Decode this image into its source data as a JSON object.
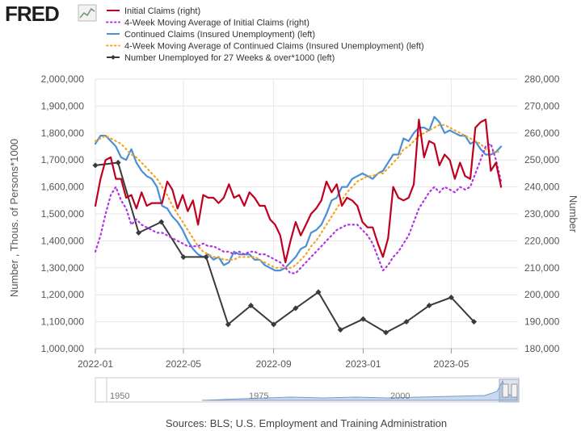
{
  "logo": {
    "text": "FRED"
  },
  "colors": {
    "initial_claims": "#c00020",
    "ma4_initial": "#b033e6",
    "continued": "#4a90d9",
    "ma4_continued": "#f5a623",
    "unemployed27": "#3a3a3a",
    "grid": "#e6e6e6"
  },
  "source_text": "Sources: BLS; U.S. Employment and Training Administration",
  "navigator": {
    "labels": [
      "1950",
      "1975",
      "2000"
    ]
  },
  "chart_data": {
    "type": "line",
    "x_type": "date",
    "xlim": [
      "2022-01-01",
      "2023-07-31"
    ],
    "x_ticks": [
      "2022-01",
      "2022-05",
      "2022-09",
      "2023-01",
      "2023-05"
    ],
    "ylabel_left": "Number , Thous. of Persons*1000",
    "ylabel_right": "Number",
    "ylim_left": [
      1000000,
      2000000
    ],
    "ylim_right": [
      180000,
      280000
    ],
    "y_ticks_left": [
      "1,000,000",
      "1,100,000",
      "1,200,000",
      "1,300,000",
      "1,400,000",
      "1,500,000",
      "1,600,000",
      "1,700,000",
      "1,800,000",
      "1,900,000",
      "2,000,000"
    ],
    "y_ticks_right": [
      "180,000",
      "190,000",
      "200,000",
      "210,000",
      "220,000",
      "230,000",
      "240,000",
      "250,000",
      "260,000",
      "270,000",
      "280,000"
    ],
    "grid": true,
    "legend_position": "top",
    "series": [
      {
        "name": "Initial Claims (right)",
        "axis": "right",
        "style": "solid",
        "x": [
          "2022-01-01",
          "2022-01-08",
          "2022-01-15",
          "2022-01-22",
          "2022-01-29",
          "2022-02-05",
          "2022-02-12",
          "2022-02-19",
          "2022-02-26",
          "2022-03-05",
          "2022-03-12",
          "2022-03-19",
          "2022-03-26",
          "2022-04-02",
          "2022-04-09",
          "2022-04-16",
          "2022-04-23",
          "2022-04-30",
          "2022-05-07",
          "2022-05-14",
          "2022-05-21",
          "2022-05-28",
          "2022-06-04",
          "2022-06-11",
          "2022-06-18",
          "2022-06-25",
          "2022-07-02",
          "2022-07-09",
          "2022-07-16",
          "2022-07-23",
          "2022-07-30",
          "2022-08-06",
          "2022-08-13",
          "2022-08-20",
          "2022-08-27",
          "2022-09-03",
          "2022-09-10",
          "2022-09-17",
          "2022-09-24",
          "2022-10-01",
          "2022-10-08",
          "2022-10-15",
          "2022-10-22",
          "2022-10-29",
          "2022-11-05",
          "2022-11-12",
          "2022-11-19",
          "2022-11-26",
          "2022-12-03",
          "2022-12-10",
          "2022-12-17",
          "2022-12-24",
          "2022-12-31",
          "2023-01-07",
          "2023-01-14",
          "2023-01-21",
          "2023-01-28",
          "2023-02-04",
          "2023-02-11",
          "2023-02-18",
          "2023-02-25",
          "2023-03-04",
          "2023-03-11",
          "2023-03-18",
          "2023-03-25",
          "2023-04-01",
          "2023-04-08",
          "2023-04-15",
          "2023-04-22",
          "2023-04-29",
          "2023-05-06",
          "2023-05-13",
          "2023-05-20",
          "2023-05-27",
          "2023-06-03",
          "2023-06-10",
          "2023-06-17",
          "2023-06-24",
          "2023-07-01",
          "2023-07-08"
        ],
        "values": [
          233000,
          243000,
          250000,
          251000,
          243000,
          243000,
          236000,
          237000,
          232000,
          238000,
          233000,
          234000,
          234000,
          234000,
          242000,
          239000,
          232000,
          237000,
          231000,
          235000,
          226000,
          237000,
          236000,
          236000,
          234000,
          236000,
          241000,
          236000,
          237000,
          233000,
          238000,
          236000,
          233000,
          233000,
          228000,
          226000,
          222000,
          212000,
          220000,
          227000,
          222000,
          226000,
          230000,
          232000,
          235000,
          242000,
          238000,
          241000,
          233000,
          236000,
          235000,
          233000,
          227000,
          225000,
          225000,
          219000,
          214000,
          221000,
          240000,
          236000,
          235000,
          236000,
          241000,
          265000,
          251000,
          257000,
          256000,
          248000,
          252000,
          250000,
          243000,
          249000,
          244000,
          243000,
          262000,
          264000,
          265000,
          246000,
          249000,
          240000
        ]
      },
      {
        "name": "4-Week Moving Average of Initial Claims (right)",
        "axis": "right",
        "style": "dotted",
        "x": [
          "2022-01-01",
          "2022-01-08",
          "2022-01-15",
          "2022-01-22",
          "2022-01-29",
          "2022-02-05",
          "2022-02-12",
          "2022-02-19",
          "2022-02-26",
          "2022-03-05",
          "2022-03-12",
          "2022-03-19",
          "2022-03-26",
          "2022-04-02",
          "2022-04-09",
          "2022-04-16",
          "2022-04-23",
          "2022-04-30",
          "2022-05-07",
          "2022-05-14",
          "2022-05-21",
          "2022-05-28",
          "2022-06-04",
          "2022-06-11",
          "2022-06-18",
          "2022-06-25",
          "2022-07-02",
          "2022-07-09",
          "2022-07-16",
          "2022-07-23",
          "2022-07-30",
          "2022-08-06",
          "2022-08-13",
          "2022-08-20",
          "2022-08-27",
          "2022-09-03",
          "2022-09-10",
          "2022-09-17",
          "2022-09-24",
          "2022-10-01",
          "2022-10-08",
          "2022-10-15",
          "2022-10-22",
          "2022-10-29",
          "2022-11-05",
          "2022-11-12",
          "2022-11-19",
          "2022-11-26",
          "2022-12-03",
          "2022-12-10",
          "2022-12-17",
          "2022-12-24",
          "2022-12-31",
          "2023-01-07",
          "2023-01-14",
          "2023-01-21",
          "2023-01-28",
          "2023-02-04",
          "2023-02-11",
          "2023-02-18",
          "2023-02-25",
          "2023-03-04",
          "2023-03-11",
          "2023-03-18",
          "2023-03-25",
          "2023-04-01",
          "2023-04-08",
          "2023-04-15",
          "2023-04-22",
          "2023-04-29",
          "2023-05-06",
          "2023-05-13",
          "2023-05-20",
          "2023-05-27",
          "2023-06-03",
          "2023-06-10",
          "2023-06-17",
          "2023-06-24",
          "2023-07-01",
          "2023-07-08"
        ],
        "values": [
          216000,
          222000,
          230000,
          237000,
          240000,
          235000,
          232000,
          226000,
          228000,
          226000,
          225000,
          224000,
          223000,
          223000,
          222000,
          221000,
          220000,
          219000,
          218000,
          218000,
          218000,
          219000,
          218000,
          218000,
          217000,
          216000,
          216000,
          215000,
          216000,
          215000,
          216000,
          216000,
          215000,
          215000,
          214000,
          213000,
          212000,
          210000,
          208000,
          208000,
          210000,
          212000,
          214000,
          216000,
          218000,
          220000,
          222000,
          224000,
          225000,
          226000,
          226000,
          226000,
          224000,
          222000,
          219000,
          214000,
          209000,
          211000,
          214000,
          216000,
          219000,
          222000,
          227000,
          232000,
          235000,
          238000,
          240000,
          238000,
          240000,
          239000,
          238000,
          240000,
          239000,
          240000,
          245000,
          250000,
          255000,
          256000,
          250000,
          242000
        ]
      },
      {
        "name": "Continued Claims (Insured Unemployment) (left)",
        "axis": "left",
        "style": "solid",
        "x": [
          "2022-01-01",
          "2022-01-08",
          "2022-01-15",
          "2022-01-22",
          "2022-01-29",
          "2022-02-05",
          "2022-02-12",
          "2022-02-19",
          "2022-02-26",
          "2022-03-05",
          "2022-03-12",
          "2022-03-19",
          "2022-03-26",
          "2022-04-02",
          "2022-04-09",
          "2022-04-16",
          "2022-04-23",
          "2022-04-30",
          "2022-05-07",
          "2022-05-14",
          "2022-05-21",
          "2022-05-28",
          "2022-06-04",
          "2022-06-11",
          "2022-06-18",
          "2022-06-25",
          "2022-07-02",
          "2022-07-09",
          "2022-07-16",
          "2022-07-23",
          "2022-07-30",
          "2022-08-06",
          "2022-08-13",
          "2022-08-20",
          "2022-08-27",
          "2022-09-03",
          "2022-09-10",
          "2022-09-17",
          "2022-09-24",
          "2022-10-01",
          "2022-10-08",
          "2022-10-15",
          "2022-10-22",
          "2022-10-29",
          "2022-11-05",
          "2022-11-12",
          "2022-11-19",
          "2022-11-26",
          "2022-12-03",
          "2022-12-10",
          "2022-12-17",
          "2022-12-24",
          "2022-12-31",
          "2023-01-07",
          "2023-01-14",
          "2023-01-21",
          "2023-01-28",
          "2023-02-04",
          "2023-02-11",
          "2023-02-18",
          "2023-02-25",
          "2023-03-04",
          "2023-03-11",
          "2023-03-18",
          "2023-03-25",
          "2023-04-01",
          "2023-04-08",
          "2023-04-15",
          "2023-04-22",
          "2023-04-29",
          "2023-05-06",
          "2023-05-13",
          "2023-05-20",
          "2023-05-27",
          "2023-06-03",
          "2023-06-10",
          "2023-06-17",
          "2023-06-24",
          "2023-07-01",
          "2023-07-08"
        ],
        "values": [
          1760000,
          1790000,
          1790000,
          1770000,
          1750000,
          1710000,
          1700000,
          1740000,
          1690000,
          1660000,
          1640000,
          1630000,
          1600000,
          1530000,
          1520000,
          1490000,
          1470000,
          1440000,
          1400000,
          1370000,
          1350000,
          1340000,
          1350000,
          1330000,
          1340000,
          1310000,
          1320000,
          1360000,
          1350000,
          1350000,
          1350000,
          1330000,
          1330000,
          1310000,
          1300000,
          1290000,
          1290000,
          1300000,
          1320000,
          1340000,
          1370000,
          1380000,
          1430000,
          1440000,
          1460000,
          1500000,
          1550000,
          1560000,
          1600000,
          1600000,
          1630000,
          1640000,
          1650000,
          1640000,
          1630000,
          1650000,
          1660000,
          1690000,
          1720000,
          1720000,
          1780000,
          1770000,
          1800000,
          1820000,
          1820000,
          1810000,
          1860000,
          1840000,
          1800000,
          1810000,
          1800000,
          1790000,
          1790000,
          1760000,
          1770000,
          1740000,
          1720000,
          1720000,
          1730000,
          1750000
        ]
      },
      {
        "name": "4-Week Moving Average of Continued Claims (Insured Unemployment) (left)",
        "axis": "left",
        "style": "dotted",
        "x": [
          "2022-01-01",
          "2022-01-08",
          "2022-01-15",
          "2022-01-22",
          "2022-01-29",
          "2022-02-05",
          "2022-02-12",
          "2022-02-19",
          "2022-02-26",
          "2022-03-05",
          "2022-03-12",
          "2022-03-19",
          "2022-03-26",
          "2022-04-02",
          "2022-04-09",
          "2022-04-16",
          "2022-04-23",
          "2022-04-30",
          "2022-05-07",
          "2022-05-14",
          "2022-05-21",
          "2022-05-28",
          "2022-06-04",
          "2022-06-11",
          "2022-06-18",
          "2022-06-25",
          "2022-07-02",
          "2022-07-09",
          "2022-07-16",
          "2022-07-23",
          "2022-07-30",
          "2022-08-06",
          "2022-08-13",
          "2022-08-20",
          "2022-08-27",
          "2022-09-03",
          "2022-09-10",
          "2022-09-17",
          "2022-09-24",
          "2022-10-01",
          "2022-10-08",
          "2022-10-15",
          "2022-10-22",
          "2022-10-29",
          "2022-11-05",
          "2022-11-12",
          "2022-11-19",
          "2022-11-26",
          "2022-12-03",
          "2022-12-10",
          "2022-12-17",
          "2022-12-24",
          "2022-12-31",
          "2023-01-07",
          "2023-01-14",
          "2023-01-21",
          "2023-01-28",
          "2023-02-04",
          "2023-02-11",
          "2023-02-18",
          "2023-02-25",
          "2023-03-04",
          "2023-03-11",
          "2023-03-18",
          "2023-03-25",
          "2023-04-01",
          "2023-04-08",
          "2023-04-15",
          "2023-04-22",
          "2023-04-29",
          "2023-05-06",
          "2023-05-13",
          "2023-05-20",
          "2023-05-27",
          "2023-06-03",
          "2023-06-10",
          "2023-06-17",
          "2023-06-24",
          "2023-07-01",
          "2023-07-08"
        ],
        "values": [
          1770000,
          1780000,
          1790000,
          1780000,
          1770000,
          1760000,
          1740000,
          1720000,
          1710000,
          1690000,
          1670000,
          1650000,
          1630000,
          1600000,
          1570000,
          1530000,
          1500000,
          1470000,
          1440000,
          1410000,
          1380000,
          1360000,
          1350000,
          1340000,
          1340000,
          1330000,
          1330000,
          1330000,
          1340000,
          1340000,
          1340000,
          1340000,
          1330000,
          1320000,
          1310000,
          1300000,
          1300000,
          1300000,
          1300000,
          1310000,
          1330000,
          1350000,
          1380000,
          1400000,
          1430000,
          1460000,
          1490000,
          1520000,
          1550000,
          1580000,
          1600000,
          1620000,
          1630000,
          1640000,
          1640000,
          1650000,
          1650000,
          1670000,
          1690000,
          1710000,
          1740000,
          1750000,
          1770000,
          1790000,
          1800000,
          1810000,
          1820000,
          1830000,
          1830000,
          1820000,
          1810000,
          1800000,
          1790000,
          1780000,
          1770000,
          1760000,
          1740000,
          1730000,
          1730000,
          1730000
        ]
      },
      {
        "name": "Number Unemployed for 27 Weeks & over*1000 (left)",
        "axis": "left",
        "style": "solid-markers",
        "x": [
          "2022-01-01",
          "2022-02-01",
          "2022-03-01",
          "2022-04-01",
          "2022-05-01",
          "2022-06-01",
          "2022-07-01",
          "2022-08-01",
          "2022-09-01",
          "2022-10-01",
          "2022-11-01",
          "2022-12-01",
          "2023-01-01",
          "2023-02-01",
          "2023-03-01",
          "2023-04-01",
          "2023-05-01",
          "2023-06-01"
        ],
        "values": [
          1680000,
          1690000,
          1430000,
          1470000,
          1340000,
          1340000,
          1090000,
          1160000,
          1090000,
          1150000,
          1210000,
          1070000,
          1110000,
          1060000,
          1100000,
          1160000,
          1190000,
          1100000
        ]
      }
    ]
  }
}
